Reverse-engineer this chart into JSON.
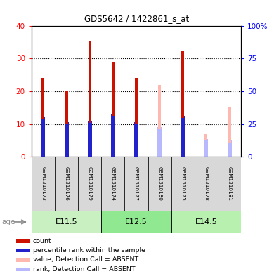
{
  "title": "GDS5642 / 1422861_s_at",
  "samples": [
    "GSM1310173",
    "GSM1310176",
    "GSM1310179",
    "GSM1310174",
    "GSM1310177",
    "GSM1310180",
    "GSM1310175",
    "GSM1310178",
    "GSM1310181"
  ],
  "count_values": [
    24,
    20,
    35.5,
    29,
    24,
    0,
    32.5,
    0,
    0
  ],
  "percentile_values": [
    12,
    10.5,
    11,
    13,
    10.5,
    0,
    12.5,
    0,
    0
  ],
  "absent_value_values": [
    0,
    0,
    0,
    0,
    0,
    22,
    0,
    7,
    15
  ],
  "absent_rank_values": [
    0,
    0,
    0,
    0,
    0,
    9,
    0,
    5.5,
    5
  ],
  "age_groups": [
    {
      "label": "E11.5",
      "start": 0,
      "end": 3
    },
    {
      "label": "E12.5",
      "start": 3,
      "end": 6
    },
    {
      "label": "E14.5",
      "start": 6,
      "end": 9
    }
  ],
  "age_colors": [
    "#c8f0c0",
    "#90e890",
    "#b8f0b0"
  ],
  "ylim": [
    0,
    40
  ],
  "y2lim": [
    0,
    100
  ],
  "yticks": [
    0,
    10,
    20,
    30,
    40
  ],
  "ytick_labels": [
    "0",
    "10",
    "20",
    "30",
    "40"
  ],
  "y2ticks": [
    0,
    25,
    50,
    75,
    100
  ],
  "y2tick_labels": [
    "0",
    "25",
    "50",
    "75",
    "100%"
  ],
  "count_color": "#cc1100",
  "percentile_color": "#2222cc",
  "absent_value_color": "#ffb8b0",
  "absent_rank_color": "#b8b8ff",
  "legend_labels": [
    "count",
    "percentile rank within the sample",
    "value, Detection Call = ABSENT",
    "rank, Detection Call = ABSENT"
  ],
  "legend_colors": [
    "#cc1100",
    "#2222cc",
    "#ffb8b0",
    "#b8b8ff"
  ],
  "sample_box_color": "#d8d8d8"
}
